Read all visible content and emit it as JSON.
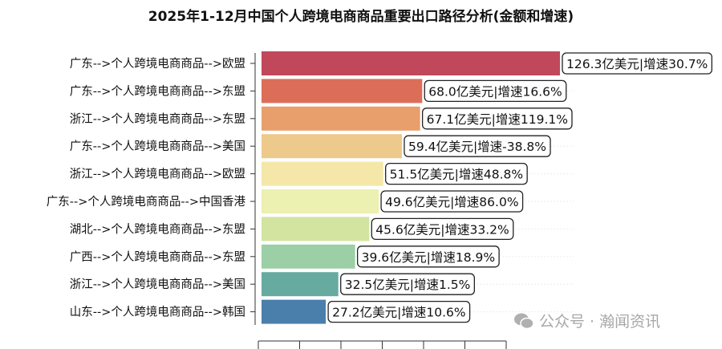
{
  "chart_data": {
    "type": "bar",
    "orientation": "horizontal",
    "title": "2025年1-12月中国个人跨境电商商品重要出口路径分析(金额和增速)",
    "categories": [
      "广东-->个人跨境电商商品-->欧盟",
      "广东-->个人跨境电商商品-->东盟",
      "浙江-->个人跨境电商商品-->东盟",
      "广东-->个人跨境电商商品-->美国",
      "浙江-->个人跨境电商商品-->欧盟",
      "广东-->个人跨境电商商品-->中国香港",
      "湖北-->个人跨境电商商品-->东盟",
      "广西-->个人跨境电商商品-->东盟",
      "浙江-->个人跨境电商商品-->美国",
      "山东-->个人跨境电商商品-->韩国"
    ],
    "values": [
      126.3,
      68.0,
      67.1,
      59.4,
      51.5,
      49.6,
      45.6,
      39.6,
      32.5,
      27.2
    ],
    "data_labels": [
      "126.3亿美元|增速30.7%",
      "68.0亿美元|增速16.6%",
      "67.1亿美元|增速119.1%",
      "59.4亿美元|增速-38.8%",
      "51.5亿美元|增速48.8%",
      "49.6亿美元|增速86.0%",
      "45.6亿美元|增速33.2%",
      "39.6亿美元|增速18.9%",
      "32.5亿美元|增速1.5%",
      "27.2亿美元|增速10.6%"
    ],
    "colors": [
      "#c0485a",
      "#dc6e59",
      "#e89f6c",
      "#edc98c",
      "#f4e7a8",
      "#ecf0b0",
      "#d2e4a0",
      "#9ccfa6",
      "#67aba0",
      "#4a7fac"
    ],
    "unit": "亿美元",
    "grid": false
  },
  "watermark": {
    "text": "公众号 · 瀚闻资讯",
    "icon": "wechat-icon"
  }
}
